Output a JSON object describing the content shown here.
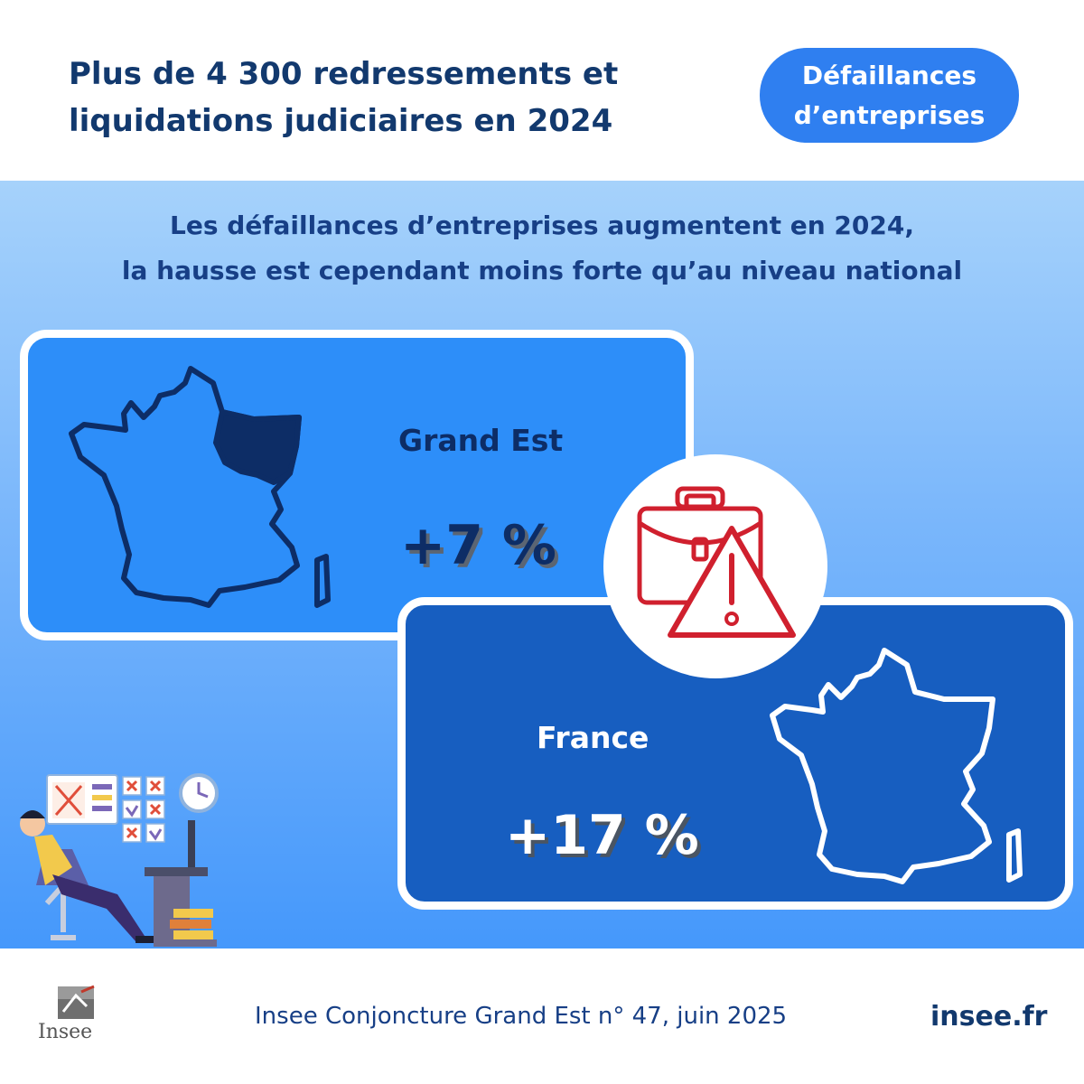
{
  "header": {
    "title_line1": "Plus de 4 300 redressements et",
    "title_line2": "liquidations judiciaires en 2024",
    "tag_line1": "Défaillances",
    "tag_line2": "d’entreprises"
  },
  "subtitle": {
    "line1": "Les défaillances d’entreprises augmentent en 2024,",
    "line2": "la hausse est cependant moins forte qu’au niveau national"
  },
  "cards": [
    {
      "label": "Grand Est",
      "value": "+7 %"
    },
    {
      "label": "France",
      "value": "+17 %"
    }
  ],
  "footer": {
    "source": "Insee Conjoncture Grand Est n° 47, juin 2025",
    "site": "insee.fr",
    "logo_text": "Insee"
  },
  "colors": {
    "title": "#12396e",
    "tag_bg": "#2f7ff0",
    "card_grand_est": "#2d8ef9",
    "card_france": "#175ec0",
    "alert": "#d0202e"
  },
  "icons": [
    "france-map-icon",
    "briefcase-icon",
    "warning-icon",
    "clock-icon",
    "insee-logo-icon"
  ]
}
